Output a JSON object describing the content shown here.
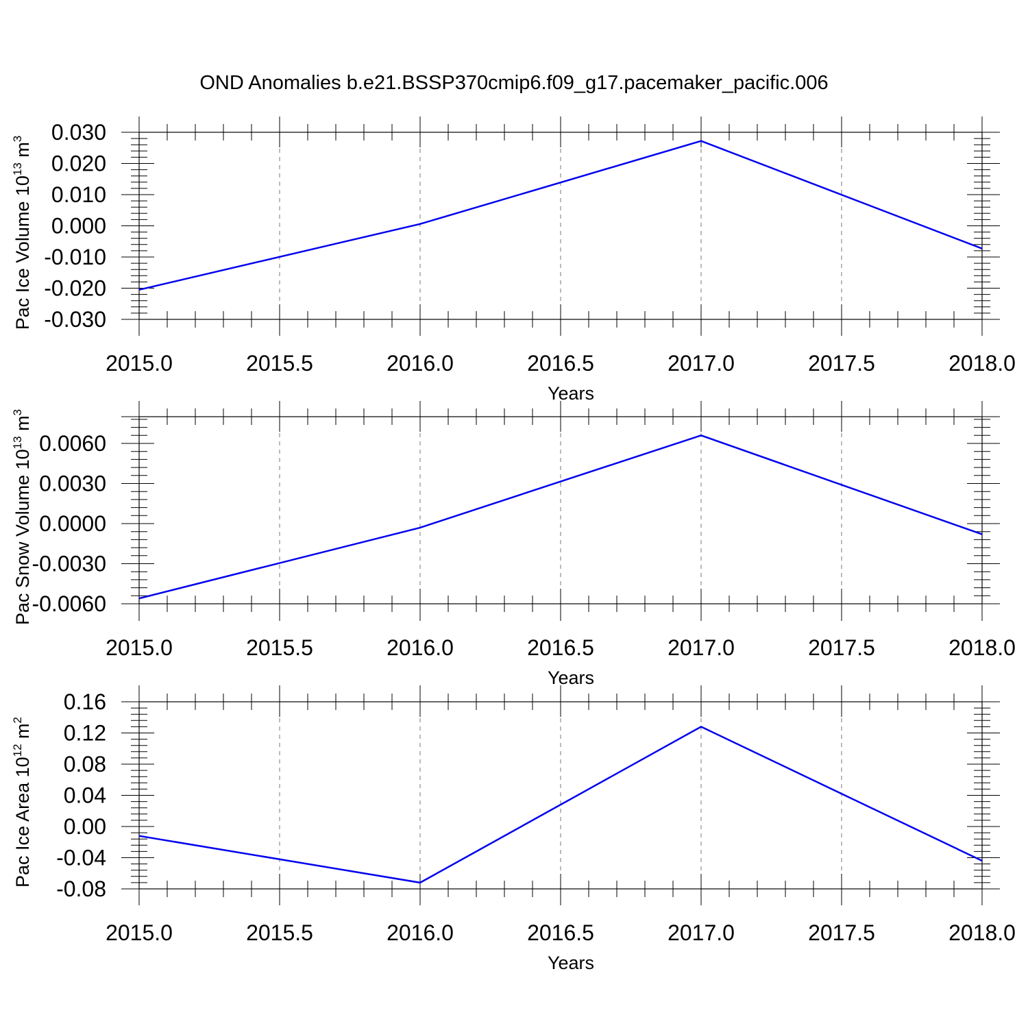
{
  "figure": {
    "title": "OND Anomalies b.e21.BSSP370cmip6.f09_g17.pacemaker_pacific.006"
  },
  "chart_data": [
    {
      "type": "line",
      "xlabel": "Years",
      "ylabel": "Pac Ice Volume 10",
      "ylabel_exp": "13",
      "ylabel_unit": " m",
      "ylabel_unit_exp": "3",
      "xlim": [
        2015.0,
        2018.0
      ],
      "ylim": [
        -0.03,
        0.03
      ],
      "xticks": [
        "2015.0",
        "2015.5",
        "2016.0",
        "2016.5",
        "2017.0",
        "2017.5",
        "2018.0"
      ],
      "xtick_values": [
        2015.0,
        2015.5,
        2016.0,
        2016.5,
        2017.0,
        2017.5,
        2018.0
      ],
      "yticks": [
        "0.030",
        "0.020",
        "0.010",
        "0.000",
        "-0.010",
        "-0.020",
        "-0.030"
      ],
      "ytick_values": [
        0.03,
        0.02,
        0.01,
        0.0,
        -0.01,
        -0.02,
        -0.03
      ],
      "grid": "vertical dashed",
      "series": [
        {
          "color": "#0000ee",
          "x": [
            2015,
            2016,
            2017,
            2018
          ],
          "values": [
            -0.0205,
            0.0006,
            0.0272,
            -0.0073
          ]
        }
      ]
    },
    {
      "type": "line",
      "xlabel": "Years",
      "ylabel": "Pac Snow Volume 10",
      "ylabel_exp": "13",
      "ylabel_unit": " m",
      "ylabel_unit_exp": "3",
      "xlim": [
        2015.0,
        2018.0
      ],
      "ylim": [
        -0.006,
        0.008
      ],
      "xticks": [
        "2015.0",
        "2015.5",
        "2016.0",
        "2016.5",
        "2017.0",
        "2017.5",
        "2018.0"
      ],
      "xtick_values": [
        2015.0,
        2015.5,
        2016.0,
        2016.5,
        2017.0,
        2017.5,
        2018.0
      ],
      "yticks": [
        "0.0060",
        "0.0030",
        "0.0000",
        "-0.0030",
        "-0.0060"
      ],
      "ytick_values": [
        0.006,
        0.003,
        0.0,
        -0.003,
        -0.006
      ],
      "grid": "vertical dashed",
      "series": [
        {
          "color": "#0000ee",
          "x": [
            2015,
            2016,
            2017,
            2018
          ],
          "values": [
            -0.0056,
            -0.0003,
            0.0066,
            -0.0008
          ]
        }
      ]
    },
    {
      "type": "line",
      "xlabel": "Years",
      "ylabel": "Pac Ice Area 10",
      "ylabel_exp": "12",
      "ylabel_unit": " m",
      "ylabel_unit_exp": "2",
      "xlim": [
        2015.0,
        2018.0
      ],
      "ylim": [
        -0.08,
        0.16
      ],
      "xticks": [
        "2015.0",
        "2015.5",
        "2016.0",
        "2016.5",
        "2017.0",
        "2017.5",
        "2018.0"
      ],
      "xtick_values": [
        2015.0,
        2015.5,
        2016.0,
        2016.5,
        2017.0,
        2017.5,
        2018.0
      ],
      "yticks": [
        "0.16",
        "0.12",
        "0.08",
        "0.04",
        "0.00",
        "-0.04",
        "-0.08"
      ],
      "ytick_values": [
        0.16,
        0.12,
        0.08,
        0.04,
        0.0,
        -0.04,
        -0.08
      ],
      "grid": "vertical dashed",
      "series": [
        {
          "color": "#0000ee",
          "x": [
            2015,
            2016,
            2017,
            2018
          ],
          "values": [
            -0.012,
            -0.072,
            0.128,
            -0.044
          ]
        }
      ]
    }
  ]
}
